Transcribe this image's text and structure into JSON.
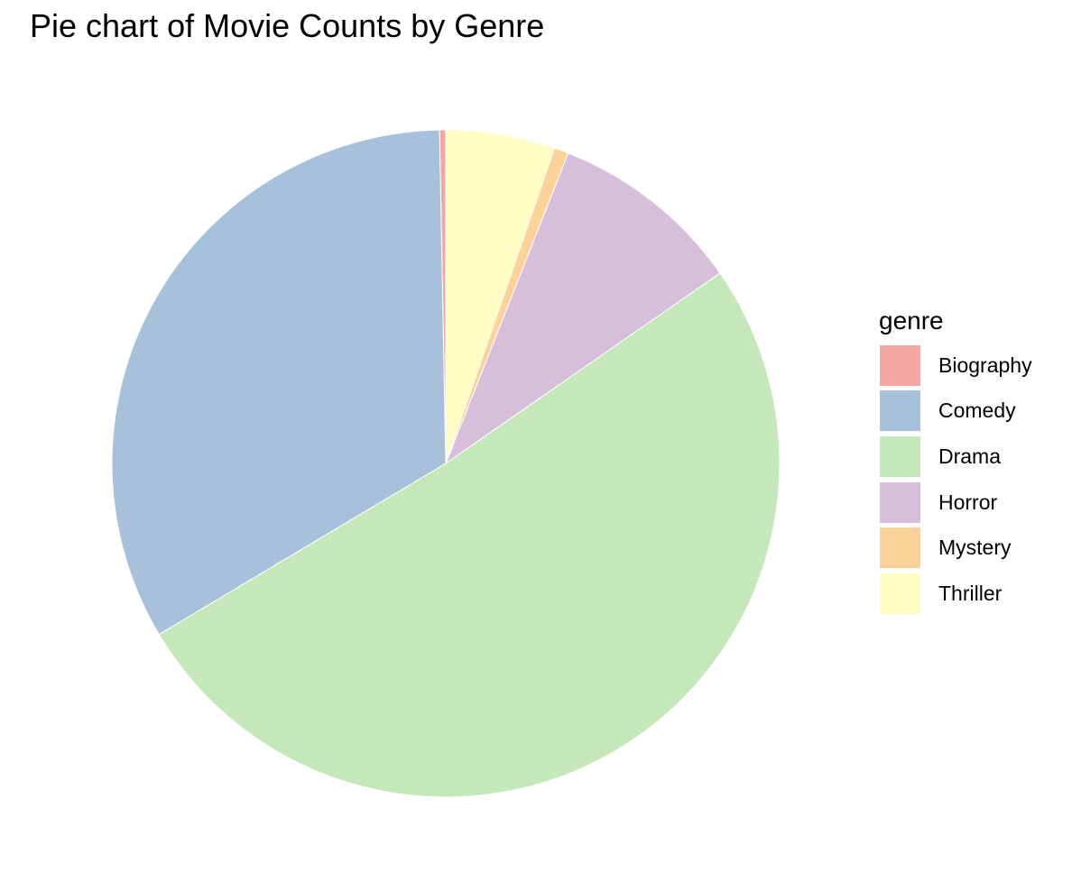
{
  "chart_data": {
    "type": "pie",
    "title": "Pie chart of Movie Counts by Genre",
    "legend_title": "genre",
    "legend_position": "right",
    "categories": [
      "Biography",
      "Comedy",
      "Drama",
      "Horror",
      "Mystery",
      "Thriller"
    ],
    "values": [
      0.3,
      33.4,
      51.3,
      9.4,
      0.7,
      5.3
    ],
    "unit": "percent of movies",
    "colors": [
      "#F4A6A2",
      "#A7C1DB",
      "#C4E8B9",
      "#D7BFDC",
      "#FDD298",
      "#FEFDC4"
    ],
    "slice_order": [
      "Biography",
      "Comedy",
      "Drama",
      "Horror",
      "Mystery",
      "Thriller"
    ],
    "direction": "counter-clockwise from top"
  }
}
